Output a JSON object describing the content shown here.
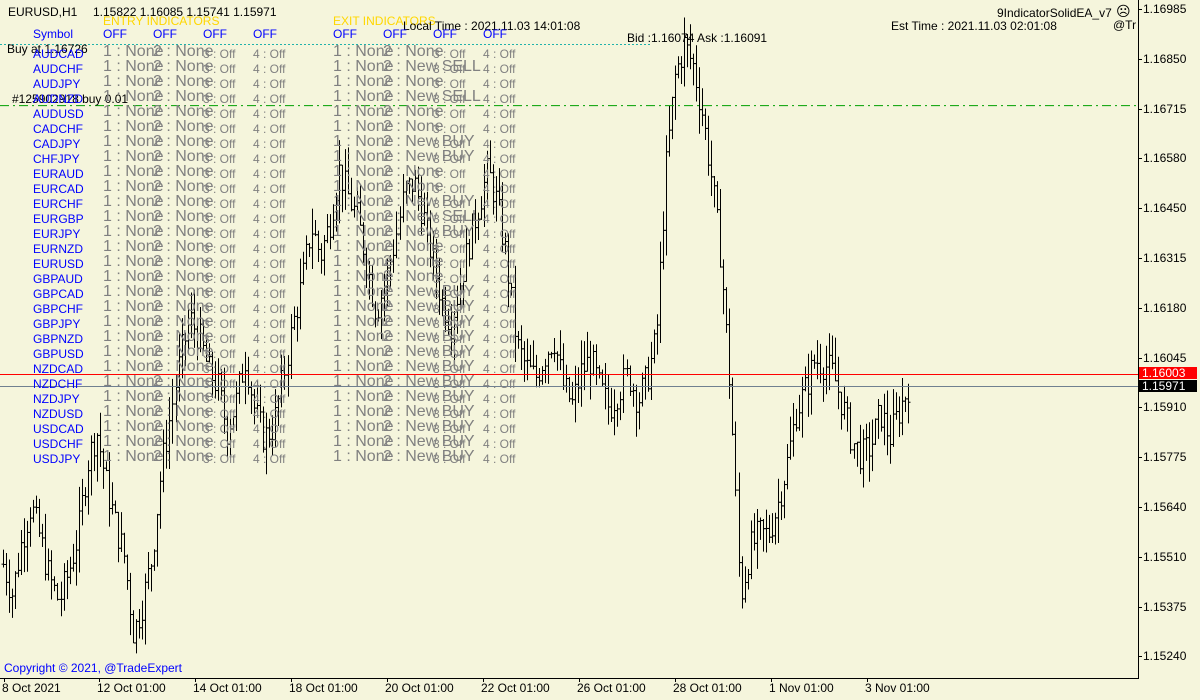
{
  "window": {
    "title": "EURUSD,H1",
    "ohlc": "1.15822 1.16085 1.15741 1.15971",
    "ea_name": "9IndicatorSolidEA_v7",
    "ea_short": "@Tr",
    "smiley_icon": "smiley-icon"
  },
  "panel": {
    "entry_header": "ENTRY INDICATORS",
    "exit_header": "EXIT INDICATORS",
    "symbol_header": "Symbol",
    "entry_flags": [
      "OFF",
      "OFF",
      "OFF",
      "OFF"
    ],
    "exit_flags": [
      "OFF",
      "OFF",
      "OFF",
      "OFF"
    ],
    "local_time": "Local Time : 2021.11.03 14:01:08",
    "est_time": "Est Time : 2021.11.03 02:01:08",
    "bid_ask": "Bid :1.16074 Ask :1.16091",
    "buy_at": "Buy at 1.16726",
    "order_label": "#125902918 buy 0.01",
    "copyright": "Copyright © 2021, @TradeExpert",
    "rows": [
      {
        "symbol": "AUDCAD",
        "entry": [
          "1 : None",
          "2 : None",
          "3 : Off",
          "4 : Off"
        ],
        "exit": [
          "1 : None",
          "2 : None",
          "3 : Off",
          "4 : Off"
        ]
      },
      {
        "symbol": "AUDCHF",
        "entry": [
          "1 : None",
          "2 : None",
          "3 : Off",
          "4 : Off"
        ],
        "exit": [
          "1 : None",
          "2 : New SELL",
          "3 : Off",
          "4 : Off"
        ]
      },
      {
        "symbol": "AUDJPY",
        "entry": [
          "1 : None",
          "2 : None",
          "3 : Off",
          "4 : Off"
        ],
        "exit": [
          "1 : None",
          "2 : None",
          "3 : Off",
          "4 : Off"
        ]
      },
      {
        "symbol": "AUDNZD",
        "entry": [
          "1 : None",
          "2 : None",
          "3 : Off",
          "4 : Off"
        ],
        "exit": [
          "1 : None",
          "2 : New SELL",
          "3 : Off",
          "4 : Off"
        ]
      },
      {
        "symbol": "AUDUSD",
        "entry": [
          "1 : None",
          "2 : None",
          "3 : Off",
          "4 : Off"
        ],
        "exit": [
          "1 : None",
          "2 : None",
          "3 : Off",
          "4 : Off"
        ]
      },
      {
        "symbol": "CADCHF",
        "entry": [
          "1 : None",
          "2 : None",
          "3 : Off",
          "4 : Off"
        ],
        "exit": [
          "1 : None",
          "2 : None",
          "3 : Off",
          "4 : Off"
        ]
      },
      {
        "symbol": "CADJPY",
        "entry": [
          "1 : None",
          "2 : None",
          "3 : Off",
          "4 : Off"
        ],
        "exit": [
          "1 : None",
          "2 : New BUY",
          "3 : Off",
          "4 : Off"
        ]
      },
      {
        "symbol": "CHFJPY",
        "entry": [
          "1 : None",
          "2 : None",
          "3 : Off",
          "4 : Off"
        ],
        "exit": [
          "1 : None",
          "2 : New BUY",
          "3 : Off",
          "4 : Off"
        ]
      },
      {
        "symbol": "EURAUD",
        "entry": [
          "1 : None",
          "2 : None",
          "3 : Off",
          "4 : Off"
        ],
        "exit": [
          "1 : None",
          "2 : None",
          "3 : Off",
          "4 : Off"
        ]
      },
      {
        "symbol": "EURCAD",
        "entry": [
          "1 : None",
          "2 : None",
          "3 : Off",
          "4 : Off"
        ],
        "exit": [
          "1 : None",
          "2 : None",
          "3 : Off",
          "4 : Off"
        ]
      },
      {
        "symbol": "EURCHF",
        "entry": [
          "1 : None",
          "2 : None",
          "3 : Off",
          "4 : Off"
        ],
        "exit": [
          "1 : None",
          "2 : New BUY",
          "3 : Off",
          "4 : Off"
        ]
      },
      {
        "symbol": "EURGBP",
        "entry": [
          "1 : None",
          "2 : None",
          "3 : Off",
          "4 : Off"
        ],
        "exit": [
          "1 : None",
          "2 : New SELL",
          "3 : Off",
          "4 : Off"
        ]
      },
      {
        "symbol": "EURJPY",
        "entry": [
          "1 : None",
          "2 : None",
          "3 : Off",
          "4 : Off"
        ],
        "exit": [
          "1 : None",
          "2 : New BUY",
          "3 : Off",
          "4 : Off"
        ]
      },
      {
        "symbol": "EURNZD",
        "entry": [
          "1 : None",
          "2 : None",
          "3 : Off",
          "4 : Off"
        ],
        "exit": [
          "1 : None",
          "2 : None",
          "3 : Off",
          "4 : Off"
        ]
      },
      {
        "symbol": "EURUSD",
        "entry": [
          "1 : None",
          "2 : None",
          "3 : Off",
          "4 : Off"
        ],
        "exit": [
          "1 : None",
          "2 : None",
          "3 : Off",
          "4 : Off"
        ]
      },
      {
        "symbol": "GBPAUD",
        "entry": [
          "1 : None",
          "2 : None",
          "3 : Off",
          "4 : Off"
        ],
        "exit": [
          "1 : None",
          "2 : None",
          "3 : Off",
          "4 : Off"
        ]
      },
      {
        "symbol": "GBPCAD",
        "entry": [
          "1 : None",
          "2 : None",
          "3 : Off",
          "4 : Off"
        ],
        "exit": [
          "1 : None",
          "2 : New BUY",
          "3 : Off",
          "4 : Off"
        ]
      },
      {
        "symbol": "GBPCHF",
        "entry": [
          "1 : None",
          "2 : None",
          "3 : Off",
          "4 : Off"
        ],
        "exit": [
          "1 : None",
          "2 : New BUY",
          "3 : Off",
          "4 : Off"
        ]
      },
      {
        "symbol": "GBPJPY",
        "entry": [
          "1 : None",
          "2 : None",
          "3 : Off",
          "4 : Off"
        ],
        "exit": [
          "1 : None",
          "2 : New BUY",
          "3 : Off",
          "4 : Off"
        ]
      },
      {
        "symbol": "GBPNZD",
        "entry": [
          "1 : None",
          "2 : None",
          "3 : Off",
          "4 : Off"
        ],
        "exit": [
          "1 : None",
          "2 : New BUY",
          "3 : Off",
          "4 : Off"
        ]
      },
      {
        "symbol": "GBPUSD",
        "entry": [
          "1 : None",
          "2 : None",
          "3 : Off",
          "4 : Off"
        ],
        "exit": [
          "1 : None",
          "2 : New BUY",
          "3 : Off",
          "4 : Off"
        ]
      },
      {
        "symbol": "NZDCAD",
        "entry": [
          "1 : None",
          "2 : None",
          "3 : Off",
          "4 : Off"
        ],
        "exit": [
          "1 : None",
          "2 : New BUY",
          "3 : Off",
          "4 : Off"
        ]
      },
      {
        "symbol": "NZDCHF",
        "entry": [
          "1 : None",
          "2 : None",
          "3 : Off",
          "4 : Off"
        ],
        "exit": [
          "1 : None",
          "2 : New BUY",
          "3 : Off",
          "4 : Off"
        ]
      },
      {
        "symbol": "NZDJPY",
        "entry": [
          "1 : None",
          "2 : None",
          "3 : Off",
          "4 : Off"
        ],
        "exit": [
          "1 : None",
          "2 : New BUY",
          "3 : Off",
          "4 : Off"
        ]
      },
      {
        "symbol": "NZDUSD",
        "entry": [
          "1 : None",
          "2 : None",
          "3 : Off",
          "4 : Off"
        ],
        "exit": [
          "1 : None",
          "2 : New BUY",
          "3 : Off",
          "4 : Off"
        ]
      },
      {
        "symbol": "USDCAD",
        "entry": [
          "1 : None",
          "2 : None",
          "3 : Off",
          "4 : Off"
        ],
        "exit": [
          "1 : None",
          "2 : New BUY",
          "3 : Off",
          "4 : Off"
        ]
      },
      {
        "symbol": "USDCHF",
        "entry": [
          "1 : None",
          "2 : None",
          "3 : Off",
          "4 : Off"
        ],
        "exit": [
          "1 : None",
          "2 : New BUY",
          "3 : Off",
          "4 : Off"
        ]
      },
      {
        "symbol": "USDJPY",
        "entry": [
          "1 : None",
          "2 : None",
          "3 : Off",
          "4 : Off"
        ],
        "exit": [
          "1 : None",
          "2 : New BUY",
          "3 : Off",
          "4 : Off"
        ]
      }
    ]
  },
  "price_axis": {
    "labels": [
      "1.16985",
      "1.16850",
      "1.16715",
      "1.16580",
      "1.16450",
      "1.16315",
      "1.16180",
      "1.16045",
      "1.15910",
      "1.15775",
      "1.15640",
      "1.15510",
      "1.15375",
      "1.15240"
    ],
    "bid_marker": "1.15971",
    "red_marker": "1.16003",
    "buy_line_price": "1.16726"
  },
  "time_axis": {
    "labels": [
      "8 Oct 2021",
      "12 Oct 01:00",
      "14 Oct 01:00",
      "18 Oct 01:00",
      "20 Oct 01:00",
      "22 Oct 01:00",
      "26 Oct 01:00",
      "28 Oct 01:00",
      "1 Nov 01:00",
      "3 Nov 01:00"
    ]
  },
  "colors": {
    "background": "#f5f5dc",
    "bars": "#000000",
    "symbol_text": "#0000ff",
    "header_text": "#ffd700",
    "red_line": "#ff0000",
    "bid_line": "#708090",
    "buy_line": "#00a000",
    "grey_text": "#808080"
  },
  "chart_data": {
    "type": "ohlc",
    "symbol": "EURUSD",
    "timeframe": "H1",
    "ylim": [
      1.1518,
      1.1703
    ],
    "close_path": [
      1.1549,
      1.1541,
      1.1555,
      1.1565,
      1.1556,
      1.1545,
      1.1539,
      1.1547,
      1.1557,
      1.1576,
      1.1585,
      1.1571,
      1.156,
      1.1551,
      1.153,
      1.1539,
      1.1551,
      1.1575,
      1.159,
      1.1605,
      1.1615,
      1.161,
      1.1601,
      1.1597,
      1.1585,
      1.1593,
      1.1605,
      1.159,
      1.1583,
      1.1586,
      1.1599,
      1.1613,
      1.1625,
      1.164,
      1.1632,
      1.1641,
      1.1655,
      1.1648,
      1.1642,
      1.163,
      1.1617,
      1.1625,
      1.1636,
      1.1649,
      1.1652,
      1.1643,
      1.1631,
      1.162,
      1.1614,
      1.1625,
      1.1636,
      1.1646,
      1.1655,
      1.1646,
      1.1631,
      1.1608,
      1.1602,
      1.1599,
      1.1605,
      1.161,
      1.1597,
      1.1592,
      1.1601,
      1.1604,
      1.1596,
      1.1591,
      1.1596,
      1.16,
      1.1593,
      1.1599,
      1.161,
      1.1655,
      1.168,
      1.1689,
      1.1683,
      1.167,
      1.1652,
      1.1631,
      1.1594,
      1.154,
      1.1553,
      1.1557,
      1.1557,
      1.1565,
      1.1576,
      1.159,
      1.1596,
      1.1604,
      1.1603,
      1.16,
      1.1592,
      1.1582,
      1.1578,
      1.1581,
      1.159,
      1.1583,
      1.159,
      1.1597
    ]
  }
}
